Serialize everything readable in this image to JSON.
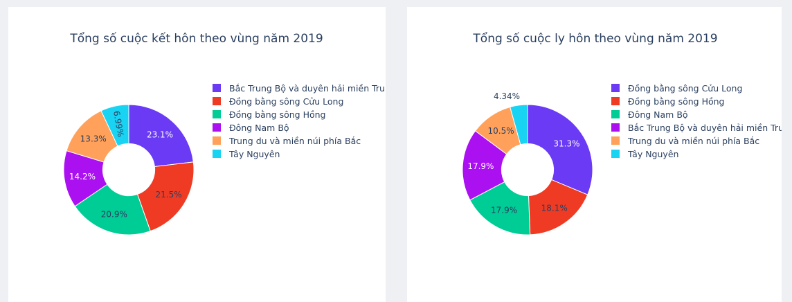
{
  "chart_data": [
    {
      "type": "pie",
      "title": "Tổng số cuộc kết hôn theo vùng năm 2019",
      "hole": 0.4,
      "categories": [
        "Bắc Trung Bộ và duyên hải miền Trung",
        "Đồng bằng sông Cửu Long",
        "Đồng bằng sông Hồng",
        "Đông Nam Bộ",
        "Trung du và miền núi phía Bắc",
        "Tây Nguyên"
      ],
      "values": [
        23.1,
        21.5,
        20.9,
        14.2,
        13.3,
        6.99
      ],
      "labels": [
        "23.1%",
        "21.5%",
        "20.9%",
        "14.2%",
        "13.3%",
        "6.99%"
      ],
      "colors": [
        "#6a3af5",
        "#ef3b24",
        "#00cc96",
        "#ab10f0",
        "#ffa15a",
        "#19d3f3"
      ],
      "legend_position": "right"
    },
    {
      "type": "pie",
      "title": "Tổng số cuộc ly hôn theo vùng năm 2019",
      "hole": 0.4,
      "categories": [
        "Đồng bằng sông Cửu Long",
        "Đồng bằng sông Hồng",
        "Đông Nam Bộ",
        "Bắc Trung Bộ và duyên hải miền Trung",
        "Trung du và miền núi phía Bắc",
        "Tây Nguyên"
      ],
      "values": [
        31.3,
        18.1,
        17.9,
        17.9,
        10.5,
        4.34
      ],
      "labels": [
        "31.3%",
        "18.1%",
        "17.9%",
        "17.9%",
        "10.5%",
        "4.34%"
      ],
      "colors": [
        "#6a3af5",
        "#ef3b24",
        "#00cc96",
        "#ab10f0",
        "#ffa15a",
        "#19d3f3"
      ],
      "legend_position": "right"
    }
  ]
}
